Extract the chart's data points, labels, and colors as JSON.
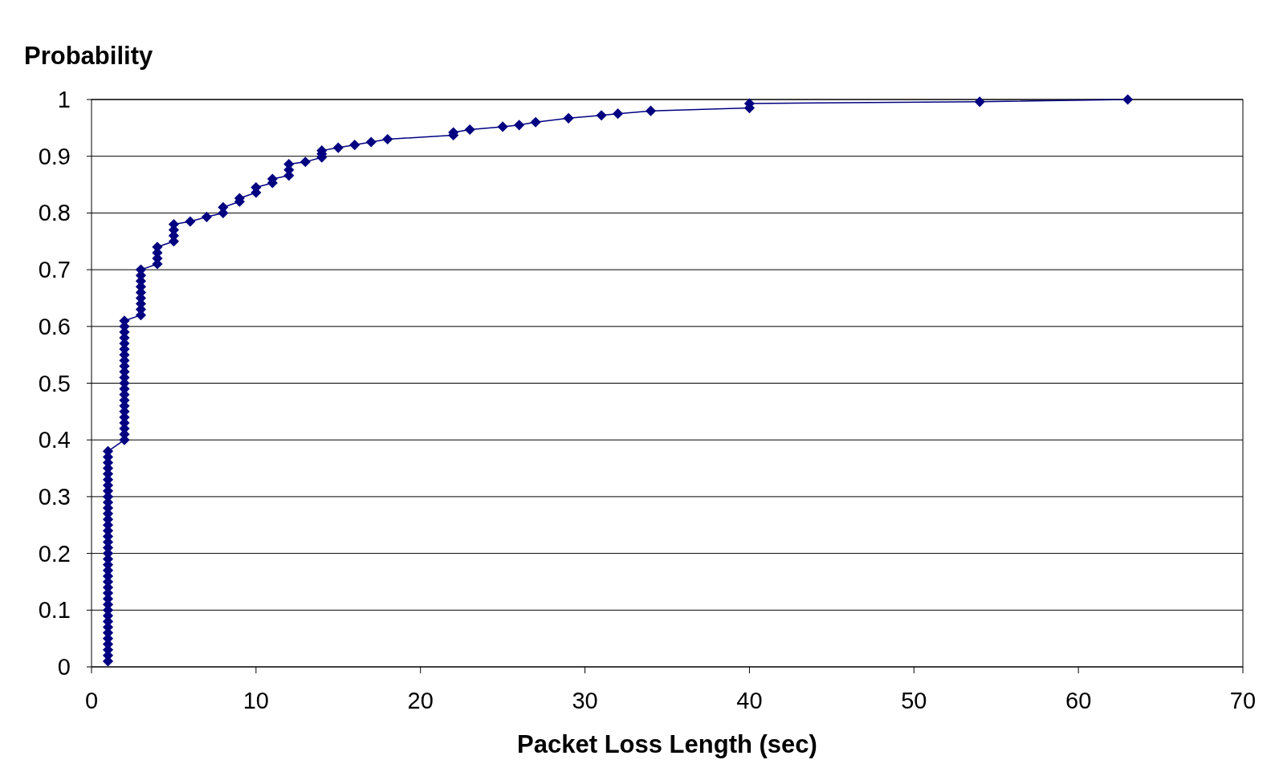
{
  "chart_data": {
    "type": "line",
    "xlabel": "Packet Loss Length (sec)",
    "ylabel": "Probability",
    "x": [
      1,
      1,
      1,
      1,
      1,
      1,
      1,
      1,
      1,
      1,
      1,
      1,
      1,
      1,
      1,
      1,
      1,
      1,
      1,
      1,
      1,
      1,
      1,
      1,
      1,
      1,
      1,
      1,
      1,
      1,
      1,
      1,
      1,
      1,
      1,
      1,
      1,
      1,
      2,
      2,
      2,
      2,
      2,
      2,
      2,
      2,
      2,
      2,
      2,
      2,
      2,
      2,
      2,
      2,
      2,
      2,
      2,
      2,
      2,
      2,
      3,
      3,
      3,
      3,
      3,
      3,
      3,
      3,
      3,
      4,
      4,
      4,
      4,
      5,
      5,
      5,
      5,
      6,
      7,
      8,
      8,
      9,
      9,
      10,
      10,
      11,
      11,
      12,
      12,
      12,
      13,
      14,
      14,
      14,
      15,
      16,
      17,
      18,
      22,
      22,
      23,
      25,
      26,
      27,
      29,
      31,
      32,
      34,
      40,
      40,
      54,
      63
    ],
    "series": [
      {
        "color": "#000080",
        "values": [
          0.01,
          0.02,
          0.03,
          0.04,
          0.05,
          0.06,
          0.07,
          0.08,
          0.09,
          0.1,
          0.11,
          0.12,
          0.13,
          0.14,
          0.15,
          0.16,
          0.17,
          0.18,
          0.19,
          0.2,
          0.21,
          0.22,
          0.23,
          0.24,
          0.25,
          0.26,
          0.27,
          0.28,
          0.29,
          0.3,
          0.31,
          0.32,
          0.33,
          0.34,
          0.35,
          0.36,
          0.37,
          0.38,
          0.4,
          0.41,
          0.42,
          0.43,
          0.44,
          0.45,
          0.46,
          0.47,
          0.48,
          0.49,
          0.5,
          0.51,
          0.52,
          0.53,
          0.54,
          0.55,
          0.56,
          0.57,
          0.58,
          0.59,
          0.6,
          0.61,
          0.62,
          0.63,
          0.64,
          0.65,
          0.66,
          0.67,
          0.68,
          0.69,
          0.7,
          0.71,
          0.72,
          0.73,
          0.74,
          0.75,
          0.76,
          0.77,
          0.78,
          0.785,
          0.793,
          0.8,
          0.81,
          0.82,
          0.826,
          0.836,
          0.845,
          0.853,
          0.86,
          0.866,
          0.876,
          0.886,
          0.89,
          0.898,
          0.904,
          0.91,
          0.915,
          0.92,
          0.925,
          0.93,
          0.937,
          0.942,
          0.947,
          0.952,
          0.955,
          0.96,
          0.967,
          0.972,
          0.975,
          0.98,
          0.985,
          0.993,
          0.996,
          1
        ]
      }
    ],
    "xlim": [
      0,
      70
    ],
    "xticks": [
      0,
      10,
      20,
      30,
      40,
      50,
      60,
      70
    ],
    "ylim": [
      0,
      1
    ],
    "yticks": [
      0,
      0.1,
      0.2,
      0.3,
      0.4,
      0.5,
      0.6,
      0.7,
      0.8,
      0.9,
      1
    ],
    "grid": "y",
    "marker": "diamond",
    "line_style": "solid"
  }
}
